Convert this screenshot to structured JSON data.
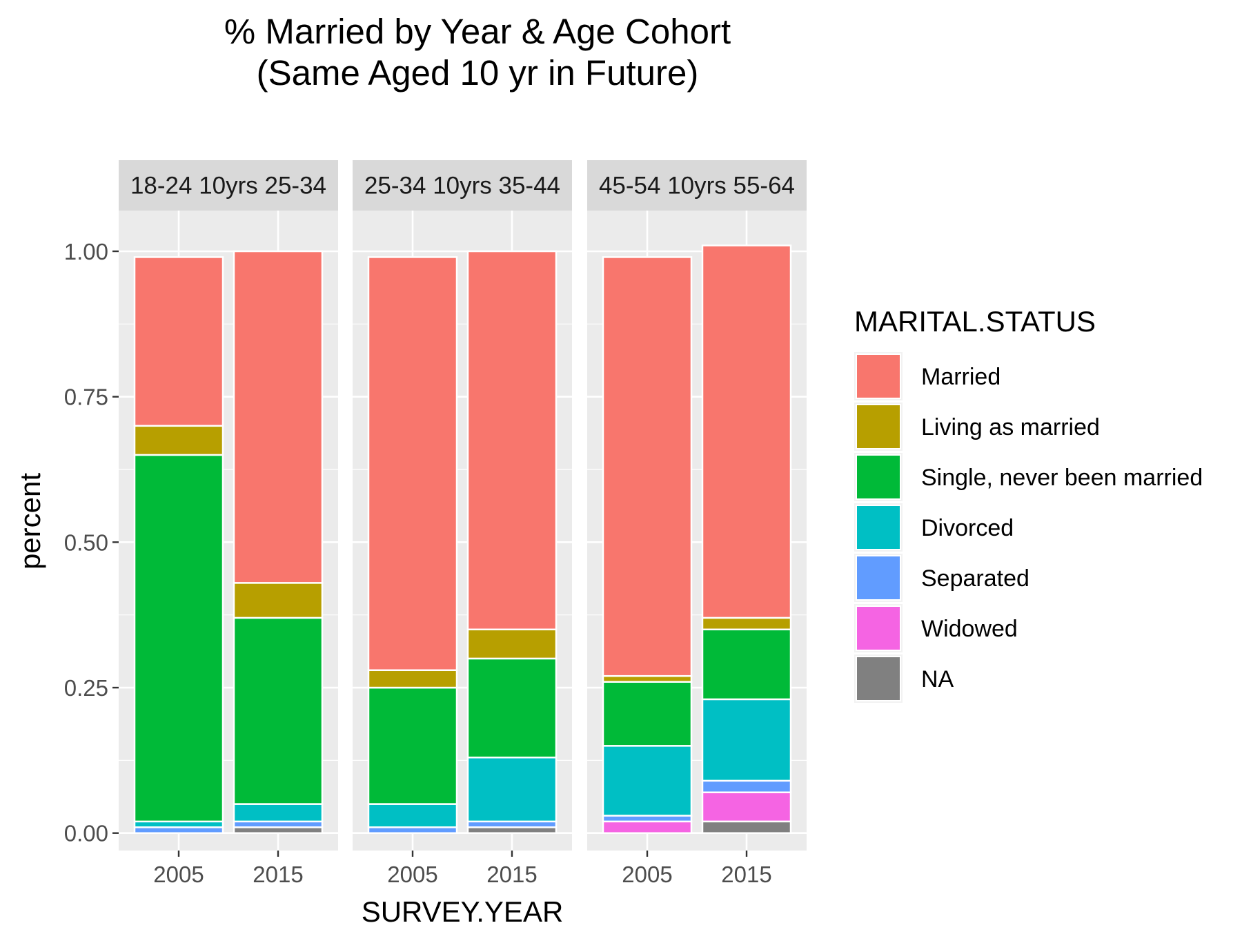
{
  "chart_data": {
    "type": "bar",
    "stacked": true,
    "title": "% Married by Year & Age Cohort",
    "subtitle": "(Same Aged 10 yr in Future)",
    "xlabel": "SURVEY.YEAR",
    "ylabel": "percent",
    "ylim": [
      -0.03,
      1.07
    ],
    "y_ticks": [
      {
        "value": 0.0,
        "label": "0.00"
      },
      {
        "value": 0.25,
        "label": "0.25"
      },
      {
        "value": 0.5,
        "label": "0.50"
      },
      {
        "value": 0.75,
        "label": "0.75"
      },
      {
        "value": 1.0,
        "label": "1.00"
      }
    ],
    "categories": [
      "2005",
      "2015"
    ],
    "grid": true,
    "legend": {
      "title": "MARITAL.STATUS",
      "position": "right",
      "entries": [
        {
          "name": "Married",
          "color": "#F8766D"
        },
        {
          "name": "Living as married",
          "color": "#B79F00"
        },
        {
          "name": "Single, never been married",
          "color": "#00BA38"
        },
        {
          "name": "Divorced",
          "color": "#00BFC4"
        },
        {
          "name": "Separated",
          "color": "#619CFF"
        },
        {
          "name": "Widowed",
          "color": "#F564E3"
        },
        {
          "name": "NA",
          "color": "#808080"
        }
      ]
    },
    "facets": [
      {
        "label": "18-24 10yrs 25-34",
        "bars": [
          {
            "x": "2005",
            "segments": [
              {
                "status": "Married",
                "value": 0.29
              },
              {
                "status": "Living as married",
                "value": 0.05
              },
              {
                "status": "Single, never been married",
                "value": 0.63
              },
              {
                "status": "Divorced",
                "value": 0.01
              },
              {
                "status": "Separated",
                "value": 0.01
              }
            ]
          },
          {
            "x": "2015",
            "segments": [
              {
                "status": "Married",
                "value": 0.57
              },
              {
                "status": "Living as married",
                "value": 0.06
              },
              {
                "status": "Single, never been married",
                "value": 0.32
              },
              {
                "status": "Divorced",
                "value": 0.03
              },
              {
                "status": "Separated",
                "value": 0.01
              },
              {
                "status": "NA",
                "value": 0.01
              }
            ]
          }
        ]
      },
      {
        "label": "25-34 10yrs 35-44",
        "bars": [
          {
            "x": "2005",
            "segments": [
              {
                "status": "Married",
                "value": 0.71
              },
              {
                "status": "Living as married",
                "value": 0.03
              },
              {
                "status": "Single, never been married",
                "value": 0.2
              },
              {
                "status": "Divorced",
                "value": 0.04
              },
              {
                "status": "Separated",
                "value": 0.01
              }
            ]
          },
          {
            "x": "2015",
            "segments": [
              {
                "status": "Married",
                "value": 0.65
              },
              {
                "status": "Living as married",
                "value": 0.05
              },
              {
                "status": "Single, never been married",
                "value": 0.17
              },
              {
                "status": "Divorced",
                "value": 0.11
              },
              {
                "status": "Separated",
                "value": 0.01
              },
              {
                "status": "NA",
                "value": 0.01
              }
            ]
          }
        ]
      },
      {
        "label": "45-54 10yrs 55-64",
        "bars": [
          {
            "x": "2005",
            "segments": [
              {
                "status": "Married",
                "value": 0.72
              },
              {
                "status": "Living as married",
                "value": 0.01
              },
              {
                "status": "Single, never been married",
                "value": 0.11
              },
              {
                "status": "Divorced",
                "value": 0.12
              },
              {
                "status": "Separated",
                "value": 0.01
              },
              {
                "status": "Widowed",
                "value": 0.02
              }
            ]
          },
          {
            "x": "2015",
            "segments": [
              {
                "status": "Married",
                "value": 0.64
              },
              {
                "status": "Living as married",
                "value": 0.02
              },
              {
                "status": "Single, never been married",
                "value": 0.12
              },
              {
                "status": "Divorced",
                "value": 0.14
              },
              {
                "status": "Separated",
                "value": 0.02
              },
              {
                "status": "Widowed",
                "value": 0.05
              },
              {
                "status": "NA",
                "value": 0.02
              }
            ]
          }
        ]
      }
    ]
  }
}
